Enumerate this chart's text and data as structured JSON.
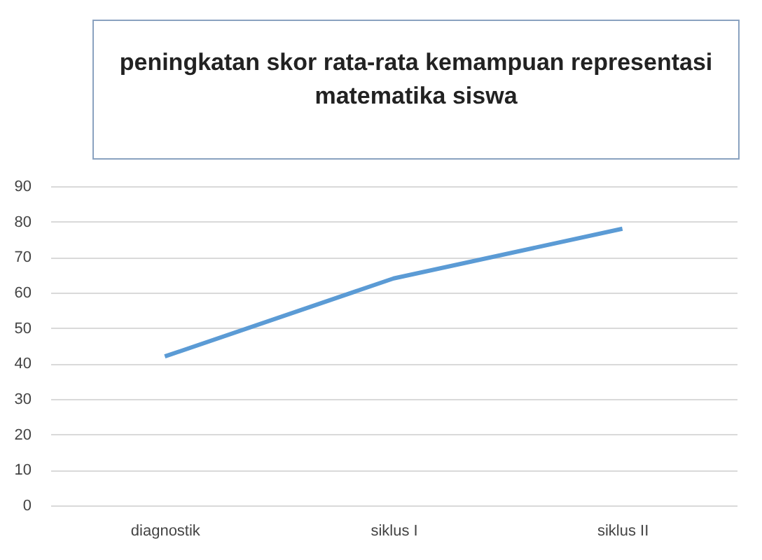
{
  "chart_data": {
    "type": "line",
    "title": "peningkatan skor rata-rata kemampuan representasi matematika siswa",
    "categories": [
      "diagnostik",
      "siklus I",
      "siklus II"
    ],
    "series": [
      {
        "color": "#5b9bd5",
        "values": [
          42,
          64,
          78
        ]
      }
    ],
    "ylim": [
      0,
      90
    ],
    "yticks": [
      0,
      10,
      20,
      30,
      40,
      50,
      60,
      70,
      80,
      90
    ],
    "grid": "y",
    "legend": false,
    "marker": "none",
    "line_style": "solid"
  }
}
